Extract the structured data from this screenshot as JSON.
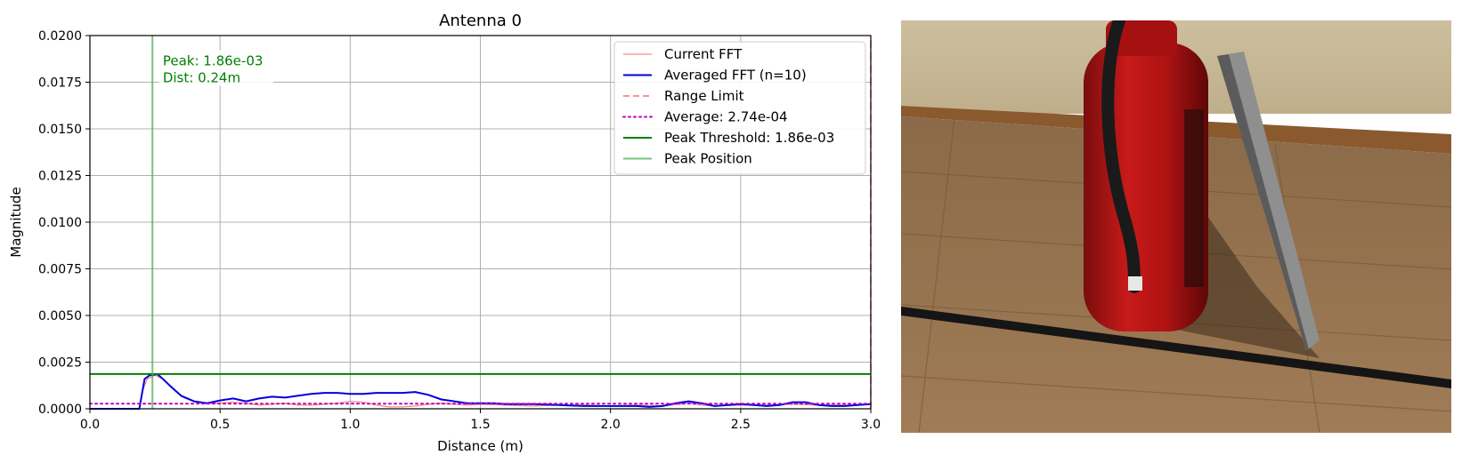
{
  "chart_data": {
    "type": "line",
    "title": "Antenna 0",
    "xlabel": "Distance (m)",
    "ylabel": "Magnitude",
    "xlim": [
      0.0,
      3.0
    ],
    "ylim": [
      0.0,
      0.02
    ],
    "xticks": [
      "0.0",
      "0.5",
      "1.0",
      "1.5",
      "2.0",
      "2.5",
      "3.0"
    ],
    "yticks": [
      "0.0000",
      "0.0025",
      "0.0050",
      "0.0075",
      "0.0100",
      "0.0125",
      "0.0150",
      "0.0175",
      "0.0200"
    ],
    "grid": true,
    "legend_position": "top-right",
    "series": [
      {
        "name": "Current FFT",
        "color": "#f08080",
        "style": "solid",
        "x": [
          0.0,
          0.19,
          0.2,
          0.22,
          0.25,
          0.28,
          0.32,
          0.36,
          0.4,
          0.45,
          0.5,
          0.55,
          0.6,
          0.65,
          0.7,
          0.75,
          0.8,
          0.85,
          0.9,
          0.95,
          1.0,
          1.05,
          1.1,
          1.15,
          1.2,
          1.25,
          1.3,
          1.35,
          1.4,
          1.45,
          1.5,
          1.6,
          1.7,
          1.8,
          1.9,
          2.0,
          2.1,
          2.2,
          2.3,
          2.35,
          2.4,
          2.5,
          2.6,
          2.7,
          2.8,
          2.9,
          3.0
        ],
        "y": [
          0.0,
          0.0,
          0.0009,
          0.0016,
          0.0018,
          0.0016,
          0.0011,
          0.0006,
          0.0004,
          0.0003,
          0.0003,
          0.00035,
          0.0003,
          0.0002,
          0.00025,
          0.0003,
          0.0002,
          0.0002,
          0.00025,
          0.0003,
          0.0004,
          0.00035,
          0.0002,
          0.0001,
          0.0001,
          0.00015,
          0.00025,
          0.0003,
          0.00025,
          0.0002,
          0.00025,
          0.0002,
          0.00015,
          0.0002,
          0.0002,
          0.00015,
          0.0002,
          0.00015,
          0.0003,
          0.0002,
          0.00015,
          0.0002,
          0.0002,
          0.00025,
          0.0002,
          0.0002,
          0.00025
        ]
      },
      {
        "name": "Averaged FFT (n=10)",
        "color": "#0000dd",
        "style": "solid",
        "x": [
          0.0,
          0.19,
          0.21,
          0.23,
          0.26,
          0.28,
          0.31,
          0.35,
          0.4,
          0.45,
          0.5,
          0.55,
          0.6,
          0.65,
          0.7,
          0.75,
          0.8,
          0.85,
          0.9,
          0.95,
          1.0,
          1.05,
          1.1,
          1.15,
          1.2,
          1.25,
          1.3,
          1.35,
          1.4,
          1.45,
          1.5,
          1.55,
          1.6,
          1.7,
          1.8,
          1.9,
          2.0,
          2.1,
          2.15,
          2.2,
          2.25,
          2.3,
          2.35,
          2.4,
          2.45,
          2.5,
          2.55,
          2.6,
          2.65,
          2.7,
          2.75,
          2.8,
          2.85,
          2.9,
          2.95,
          3.0
        ],
        "y": [
          0.0,
          0.0,
          0.0016,
          0.0018,
          0.00185,
          0.0016,
          0.0012,
          0.0007,
          0.0004,
          0.0003,
          0.00045,
          0.00055,
          0.0004,
          0.00055,
          0.00065,
          0.0006,
          0.0007,
          0.0008,
          0.00085,
          0.00085,
          0.0008,
          0.0008,
          0.00085,
          0.00085,
          0.00085,
          0.0009,
          0.00075,
          0.0005,
          0.0004,
          0.0003,
          0.0003,
          0.0003,
          0.00025,
          0.00025,
          0.0002,
          0.00015,
          0.00015,
          0.00015,
          0.0001,
          0.00015,
          0.0003,
          0.0004,
          0.0003,
          0.00015,
          0.0002,
          0.00025,
          0.0002,
          0.00015,
          0.0002,
          0.00035,
          0.00035,
          0.0002,
          0.00015,
          0.00015,
          0.0002,
          0.00025
        ]
      },
      {
        "name": "Range Limit",
        "color": "#ff6b6b",
        "style": "dashed",
        "x": [
          3.0,
          3.0
        ],
        "y": [
          0.0,
          0.02
        ]
      },
      {
        "name": "Average: 2.74e-04",
        "color": "#c000c0",
        "style": "dotted",
        "x": [
          0.0,
          3.0
        ],
        "y": [
          0.000274,
          0.000274
        ]
      },
      {
        "name": "Peak Threshold: 1.86e-03",
        "color": "#008000",
        "style": "solid",
        "x": [
          0.0,
          3.0
        ],
        "y": [
          0.00186,
          0.00186
        ]
      },
      {
        "name": "Peak Position",
        "color": "#4caf50",
        "style": "solid",
        "x": [
          0.24,
          0.24
        ],
        "y": [
          0.0,
          0.02
        ]
      }
    ],
    "annotation": {
      "lines": [
        "Peak: 1.86e-03",
        "Dist: 0.24m"
      ],
      "x": 0.28,
      "y": 0.0184,
      "color": "#008000"
    }
  },
  "photo": {
    "icon": "fire-extinguisher-photo"
  }
}
